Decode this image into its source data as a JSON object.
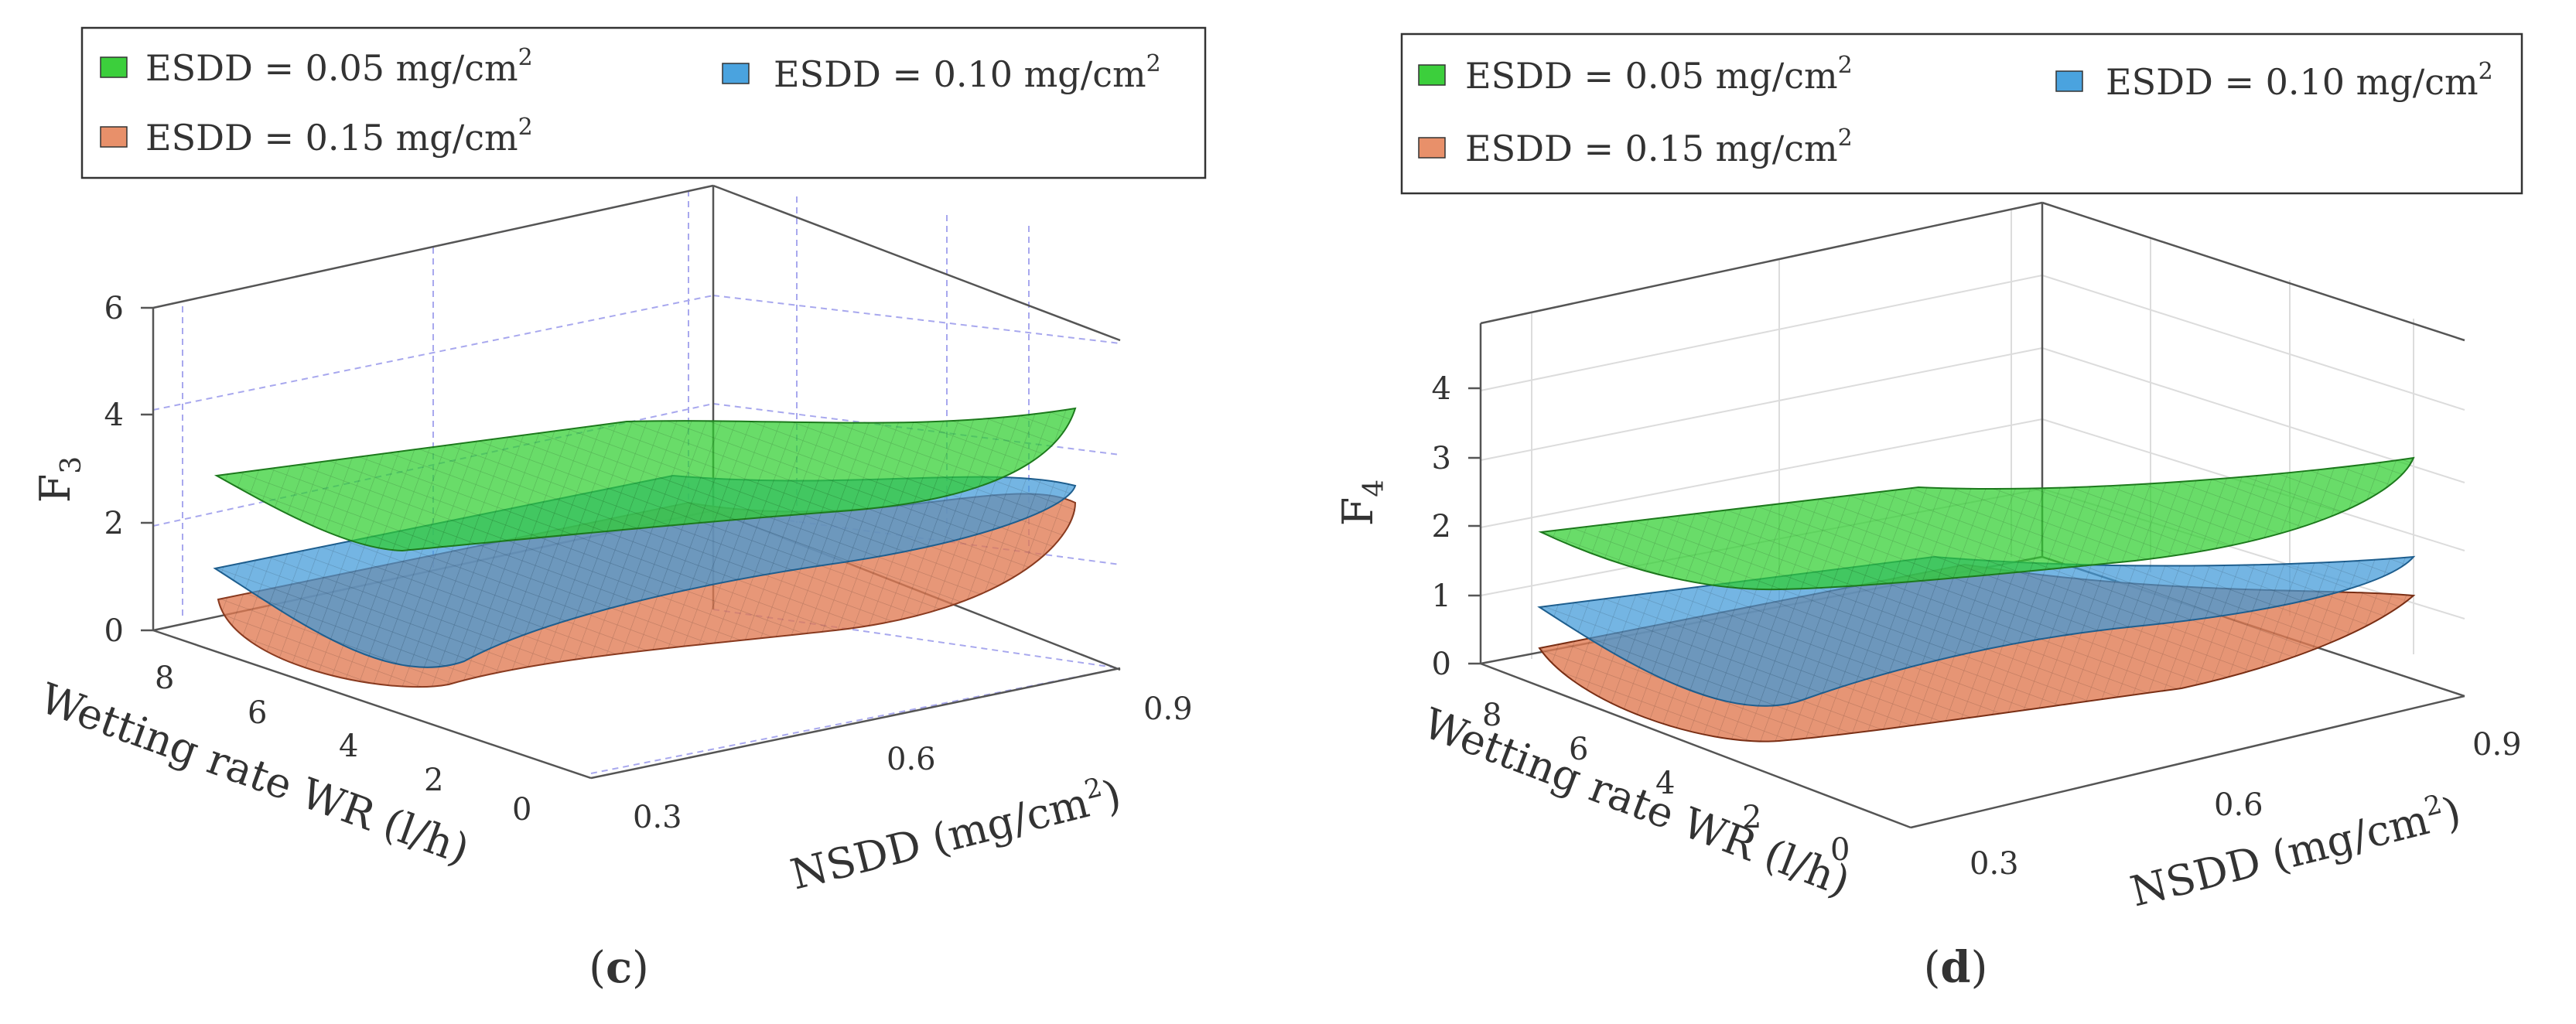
{
  "chart_data": [
    {
      "type": "surface3d",
      "panel_label": "c",
      "zlabel_base": "F",
      "zlabel_sub": "3",
      "xlabel": "Wetting rate WR (l/h)",
      "ylabel_main": "NSDD (mg/cm",
      "ylabel_sup": "2",
      "ylabel_close": ")",
      "x_ticks": [
        "0",
        "2",
        "4",
        "6",
        "8"
      ],
      "y_ticks": [
        "0.3",
        "0.6",
        "0.9"
      ],
      "z_ticks": [
        "0",
        "2",
        "4",
        "6"
      ],
      "zlim": [
        0,
        6
      ],
      "legend": [
        {
          "label": "ESDD = 0.05 mg/cm",
          "sup": "2",
          "color": "#3ccf3c"
        },
        {
          "label": "ESDD = 0.10 mg/cm",
          "sup": "2",
          "color": "#4aa3df"
        },
        {
          "label": "ESDD = 0.15 mg/cm",
          "sup": "2",
          "color": "#e8906a"
        }
      ],
      "series": [
        {
          "name": "ESDD = 0.05 mg/cm2",
          "corners": {
            "wr9_nsdd03": 2.8,
            "wr0_nsdd03": 1.6,
            "wr9_nsdd09": 3.3,
            "wr0_nsdd09": 4.2
          }
        },
        {
          "name": "ESDD = 0.10 mg/cm2",
          "corners": {
            "wr9_nsdd03": 1.2,
            "wr0_nsdd03": 0.4,
            "wr9_nsdd09": 2.0,
            "wr0_nsdd09": 2.9
          }
        },
        {
          "name": "ESDD = 0.15 mg/cm2",
          "corners": {
            "wr9_nsdd03": 0.5,
            "wr0_nsdd03": 0.1,
            "wr9_nsdd09": 1.2,
            "wr0_nsdd09": 2.4
          }
        }
      ]
    },
    {
      "type": "surface3d",
      "panel_label": "d",
      "zlabel_base": "F",
      "zlabel_sub": "4",
      "xlabel": "Wetting rate WR (l/h)",
      "ylabel_main": "NSDD (mg/cm",
      "ylabel_sup": "2",
      "ylabel_close": ")",
      "x_ticks": [
        "0",
        "2",
        "4",
        "6",
        "8"
      ],
      "y_ticks": [
        "0.3",
        "0.6",
        "0.9"
      ],
      "z_ticks": [
        "0",
        "1",
        "2",
        "3",
        "4"
      ],
      "zlim": [
        0,
        4.5
      ],
      "legend": [
        {
          "label": "ESDD = 0.05 mg/cm",
          "sup": "2",
          "color": "#3ccf3c"
        },
        {
          "label": "ESDD = 0.10 mg/cm",
          "sup": "2",
          "color": "#4aa3df"
        },
        {
          "label": "ESDD = 0.15 mg/cm",
          "sup": "2",
          "color": "#e8906a"
        }
      ],
      "series": [
        {
          "name": "ESDD = 0.05 mg/cm2",
          "corners": {
            "wr9_nsdd03": 1.8,
            "wr0_nsdd03": 1.2,
            "wr9_nsdd09": 2.0,
            "wr0_nsdd09": 2.8
          }
        },
        {
          "name": "ESDD = 0.10 mg/cm2",
          "corners": {
            "wr9_nsdd03": 0.7,
            "wr0_nsdd03": 0.2,
            "wr9_nsdd09": 1.0,
            "wr0_nsdd09": 1.5
          }
        },
        {
          "name": "ESDD = 0.15 mg/cm2",
          "corners": {
            "wr9_nsdd03": 0.1,
            "wr0_nsdd03": 0.0,
            "wr9_nsdd09": 0.5,
            "wr0_nsdd09": 0.9
          }
        }
      ]
    }
  ]
}
